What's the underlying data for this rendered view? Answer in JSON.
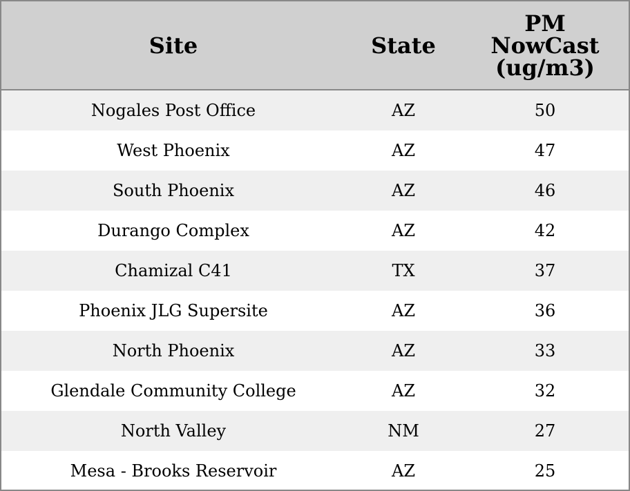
{
  "table": {
    "header": [
      "Site",
      "State",
      "PM NowCast (ug/m3)"
    ],
    "rows": [
      [
        "Nogales Post Office",
        "AZ",
        50
      ],
      [
        "West Phoenix",
        "AZ",
        47
      ],
      [
        "South Phoenix",
        "AZ",
        46
      ],
      [
        "Durango Complex",
        "AZ",
        42
      ],
      [
        "Chamizal C41",
        "TX",
        37
      ],
      [
        "Phoenix JLG Supersite",
        "AZ",
        36
      ],
      [
        "North Phoenix",
        "AZ",
        33
      ],
      [
        "Glendale Community College",
        "AZ",
        32
      ],
      [
        "North Valley",
        "NM",
        27
      ],
      [
        "Mesa - Brooks Reservoir",
        "AZ",
        25
      ]
    ]
  }
}
